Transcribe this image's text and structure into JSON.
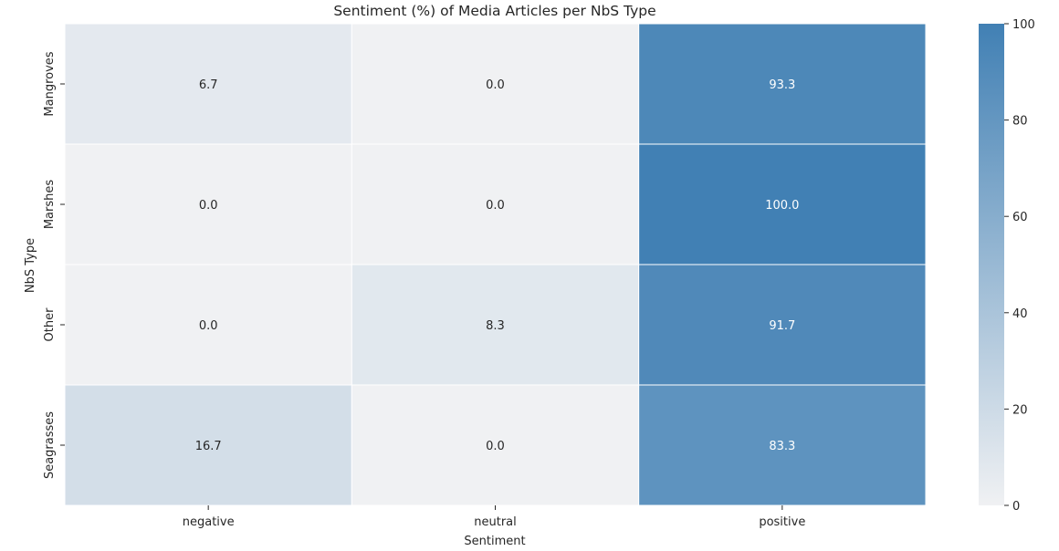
{
  "chart_data": {
    "type": "heatmap",
    "title": "Sentiment (%) of Media Articles per NbS Type",
    "xlabel": "Sentiment",
    "ylabel": "NbS Type",
    "x_categories": [
      "negative",
      "neutral",
      "positive"
    ],
    "y_categories": [
      "Mangroves",
      "Marshes",
      "Other",
      "Seagrasses"
    ],
    "values": [
      [
        6.7,
        0.0,
        93.3
      ],
      [
        0.0,
        0.0,
        100.0
      ],
      [
        0.0,
        8.3,
        91.7
      ],
      [
        16.7,
        0.0,
        83.3
      ]
    ],
    "value_labels": [
      [
        "6.7",
        "0.0",
        "93.3"
      ],
      [
        "0.0",
        "0.0",
        "100.0"
      ],
      [
        "0.0",
        "8.3",
        "91.7"
      ],
      [
        "16.7",
        "0.0",
        "83.3"
      ]
    ],
    "colorbar": {
      "range": [
        0,
        100
      ],
      "ticks": [
        0,
        20,
        40,
        60,
        80,
        100
      ],
      "tick_labels": [
        "0",
        "20",
        "40",
        "60",
        "80",
        "100"
      ],
      "color_low": "#f0f1f3",
      "color_high": "#4180b4"
    },
    "cell_text_colors": {
      "light": "#ffffff",
      "dark": "#262626"
    },
    "grid": false
  }
}
